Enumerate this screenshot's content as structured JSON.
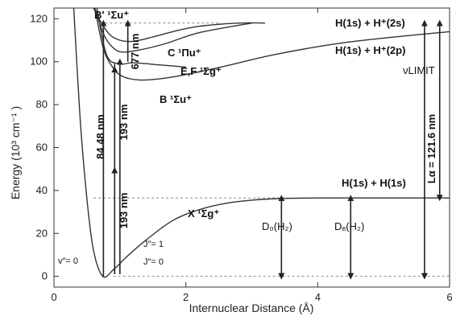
{
  "chart_data": {
    "type": "line",
    "xlabel": "Internuclear Distance (Å)",
    "ylabel": "Energy (10³ cm⁻¹ )",
    "xlim": [
      0,
      6
    ],
    "ylim": [
      -5,
      125
    ],
    "x_ticks": [
      "0",
      "2",
      "4",
      "6"
    ],
    "y_ticks": [
      "0",
      "20",
      "40",
      "60",
      "80",
      "100",
      "120"
    ],
    "series": [
      {
        "name": "X ¹Σg⁺",
        "x": [
          0.3,
          0.4,
          0.5,
          0.6,
          0.74,
          0.9,
          1.1,
          1.4,
          1.8,
          2.2,
          2.6,
          3.0,
          3.4,
          4.0,
          5.0,
          6.0
        ],
        "y": [
          125,
          72,
          36,
          12,
          0,
          3,
          9,
          17,
          26,
          31,
          34,
          35.5,
          36.2,
          36.5,
          36.5,
          36.5
        ]
      },
      {
        "name": "B ¹Σu⁺",
        "x": [
          0.62,
          0.75,
          0.9,
          1.05,
          1.29,
          1.6,
          2.0,
          2.6,
          3.3,
          4.2,
          5.0,
          6.0
        ],
        "y": [
          125,
          106,
          97,
          93,
          91.5,
          92,
          94,
          98,
          103,
          108,
          111,
          114
        ]
      },
      {
        "name": "C ¹Πu⁺",
        "x": [
          0.62,
          0.75,
          0.88,
          1.03,
          1.3,
          1.7,
          2.2,
          3.0
        ],
        "y": [
          125,
          113,
          107,
          104.5,
          105.5,
          108.5,
          113.5,
          118
        ]
      },
      {
        "name": "B′ ¹Σu⁺",
        "x": [
          0.6,
          0.72,
          0.85,
          1.0,
          1.2,
          1.5,
          1.8,
          2.2,
          2.8,
          3.2
        ],
        "y": [
          125,
          118,
          112.5,
          110,
          109.5,
          111.5,
          114,
          116.5,
          118,
          118
        ]
      },
      {
        "name": "E,F ¹Σg⁺",
        "x": [
          0.65,
          0.8,
          1.0,
          1.2,
          1.6,
          2.0
        ],
        "y": [
          125,
          103,
          99,
          99.5,
          98.5,
          97.5
        ]
      }
    ],
    "dashed_lines": [
      {
        "x": [
          0.7,
          2.5
        ],
        "y": [
          118,
          118
        ]
      },
      {
        "x": [
          0.6,
          6.0
        ],
        "y": [
          36.5,
          36.5
        ]
      },
      {
        "x": [
          0.9,
          6.0
        ],
        "y": [
          0,
          0
        ]
      }
    ],
    "vertical_lines": [
      {
        "label": "84.48 nm",
        "x": 0.75,
        "y_from": 0,
        "y_to": 118,
        "arrow_at": [
          118
        ]
      },
      {
        "label": "193 nm",
        "x": 0.92,
        "y_from": 1,
        "y_to": 99,
        "arrow_at": [
          51,
          98
        ]
      },
      {
        "label": "193 nm",
        "x": 1.0,
        "y_from": 1,
        "y_to": 100,
        "arrow_at": [
          100
        ]
      },
      {
        "label": "677 nm",
        "x": 1.12,
        "y_from": 100,
        "y_to": 118,
        "arrow_at": [
          118
        ]
      },
      {
        "label": "D₀(H₂)",
        "x": 3.45,
        "y_from": 0,
        "y_to": 36.5,
        "arrow_at": [
          0,
          36.5
        ]
      },
      {
        "label": "Dₑ(H₂)",
        "x": 4.5,
        "y_from": 0,
        "y_to": 36.5,
        "arrow_at": [
          0,
          36.5
        ]
      },
      {
        "label": "Lα = 121.6 nm",
        "x": 5.62,
        "y_from": 0,
        "y_to": 118,
        "arrow_at": [
          0,
          118
        ]
      },
      {
        "label": "νLIMIT",
        "x": 5.85,
        "y_from": 36.5,
        "y_to": 118,
        "arrow_at": [
          36.5,
          118
        ]
      }
    ]
  },
  "labels": {
    "h1s_h2s": "H(1s) + H⁺(2s)",
    "h1s_h2p": "H(1s) + H⁺(2p)",
    "h1s_h1s": "H(1s) + H(1s)",
    "x_state": "X ¹Σg⁺",
    "b_state": "B ¹Σu⁺",
    "c_state": "C ¹Πu⁺",
    "bprime_state": "B′ ¹Σu⁺",
    "ef_state": "E,F ¹Σg⁺",
    "nu_limit": "νLIMIT",
    "lalpha": "Lα = 121.6 nm",
    "d0": "D₀(H₂)",
    "de": "Dₑ(H₂)",
    "nm84": "84.48 nm",
    "nm193a": "193 nm",
    "nm193b": "193 nm",
    "nm677": "677 nm",
    "v00": "v″= 0",
    "j1": "J″= 1",
    "j0": "J″= 0"
  },
  "colors": {
    "curve": "#333333",
    "axis": "#333333",
    "text": "#111111"
  }
}
